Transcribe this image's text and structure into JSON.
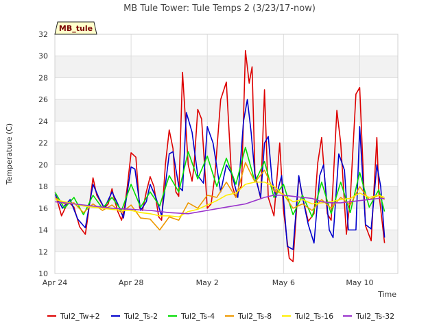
{
  "chart_data": {
    "type": "line",
    "title": "MB Tule Tower: Tule Temps 2 (3/23/17-now)",
    "badge": "MB_tule",
    "xlabel": "Time",
    "ylabel": "Temperature (C)",
    "ylim": [
      10,
      32
    ],
    "yticks": [
      10,
      12,
      14,
      16,
      18,
      20,
      22,
      24,
      26,
      28,
      30,
      32
    ],
    "xlim": [
      0,
      18
    ],
    "xticks": [
      {
        "value": 0,
        "label": "Apr 24"
      },
      {
        "value": 4,
        "label": "Apr 28"
      },
      {
        "value": 8,
        "label": "May 2"
      },
      {
        "value": 12,
        "label": "May 6"
      },
      {
        "value": 16,
        "label": "May 10"
      }
    ],
    "grid": true,
    "legend_position": "bottom",
    "series": [
      {
        "name": "Tul2_Tw+2",
        "color": "#dd0000",
        "x": [
          0.0,
          0.35,
          0.7,
          1.0,
          1.3,
          1.6,
          1.7,
          2.0,
          2.2,
          2.6,
          2.8,
          3.0,
          3.1,
          3.3,
          3.5,
          3.65,
          3.8,
          4.0,
          4.25,
          4.45,
          4.6,
          4.8,
          5.0,
          5.2,
          5.45,
          5.6,
          5.8,
          6.0,
          6.2,
          6.35,
          6.5,
          6.7,
          7.0,
          7.2,
          7.3,
          7.5,
          7.7,
          8.0,
          8.2,
          8.4,
          8.7,
          9.0,
          9.3,
          9.5,
          9.8,
          10.0,
          10.2,
          10.35,
          10.5,
          10.8,
          11.0,
          11.2,
          11.5,
          11.8,
          12.0,
          12.3,
          12.5,
          12.8,
          13.0,
          13.3,
          13.6,
          13.8,
          14.0,
          14.3,
          14.5,
          14.8,
          15.0,
          15.3,
          15.5,
          15.8,
          16.0,
          16.3,
          16.6,
          16.9,
          17.0,
          17.3
        ],
        "y": [
          17.5,
          15.3,
          16.6,
          16.1,
          14.3,
          13.6,
          14.8,
          18.8,
          17.2,
          16.0,
          16.4,
          17.8,
          17.0,
          15.7,
          14.9,
          16.0,
          18.0,
          21.1,
          20.7,
          16.0,
          15.8,
          17.5,
          18.9,
          18.0,
          15.2,
          14.9,
          20.0,
          23.2,
          21.5,
          17.5,
          17.1,
          28.5,
          20.0,
          18.5,
          19.8,
          25.1,
          24.2,
          16.0,
          16.4,
          19.0,
          26.0,
          27.6,
          18.1,
          17.0,
          18.1,
          30.5,
          27.5,
          29.0,
          19.2,
          16.9,
          26.9,
          17.0,
          15.3,
          22.0,
          15.8,
          11.4,
          11.1,
          18.9,
          17.0,
          14.8,
          15.5,
          20.2,
          22.5,
          15.5,
          14.9,
          25.0,
          22.0,
          13.6,
          16.8,
          26.5,
          27.1,
          14.4,
          13.0,
          22.5,
          17.5,
          12.8
        ]
      },
      {
        "name": "Tul2_Ts-2",
        "color": "#0000cc",
        "x": [
          0.0,
          0.4,
          0.8,
          1.2,
          1.6,
          2.0,
          2.3,
          2.6,
          3.0,
          3.3,
          3.6,
          4.0,
          4.2,
          4.5,
          4.8,
          5.0,
          5.3,
          5.6,
          6.0,
          6.2,
          6.5,
          6.7,
          6.9,
          7.2,
          7.5,
          7.8,
          8.0,
          8.3,
          8.7,
          9.0,
          9.3,
          9.6,
          9.9,
          10.1,
          10.3,
          10.5,
          10.8,
          11.0,
          11.2,
          11.4,
          11.6,
          11.9,
          12.2,
          12.5,
          12.8,
          13.0,
          13.3,
          13.6,
          13.9,
          14.1,
          14.4,
          14.6,
          14.9,
          15.2,
          15.4,
          15.8,
          16.0,
          16.3,
          16.6,
          16.9,
          17.1,
          17.3
        ],
        "y": [
          17.3,
          16.0,
          16.8,
          15.0,
          14.2,
          18.2,
          17.0,
          16.0,
          17.5,
          16.4,
          15.1,
          19.8,
          19.6,
          15.8,
          16.6,
          18.2,
          17.0,
          15.3,
          21.0,
          21.2,
          18.0,
          17.6,
          24.8,
          23.0,
          19.0,
          18.3,
          23.5,
          22.0,
          17.5,
          20.0,
          19.1,
          17.0,
          24.0,
          26.0,
          23.0,
          19.0,
          17.0,
          22.0,
          22.6,
          18.5,
          17.0,
          19.0,
          12.5,
          12.2,
          19.0,
          17.0,
          14.5,
          12.8,
          19.0,
          20.0,
          14.0,
          13.3,
          21.0,
          19.5,
          14.0,
          14.0,
          23.5,
          14.5,
          14.1,
          20.0,
          18.0,
          13.3
        ]
      },
      {
        "name": "Tul2_Ts-4",
        "color": "#00dd00",
        "x": [
          0.0,
          0.5,
          1.0,
          1.5,
          2.0,
          2.5,
          3.0,
          3.5,
          4.0,
          4.5,
          5.0,
          5.5,
          6.0,
          6.5,
          7.0,
          7.5,
          8.0,
          8.5,
          9.0,
          9.5,
          10.0,
          10.5,
          11.0,
          11.5,
          12.0,
          12.5,
          13.0,
          13.5,
          14.0,
          14.5,
          15.0,
          15.5,
          16.0,
          16.5,
          17.0,
          17.3
        ],
        "y": [
          17.5,
          16.0,
          17.0,
          15.4,
          17.2,
          16.0,
          17.0,
          15.8,
          18.2,
          16.1,
          17.5,
          16.2,
          19.0,
          17.5,
          21.2,
          18.7,
          20.8,
          18.0,
          20.6,
          18.2,
          21.6,
          18.4,
          20.3,
          17.0,
          18.2,
          15.4,
          17.2,
          15.2,
          18.4,
          15.5,
          18.4,
          15.6,
          19.3,
          16.1,
          17.7,
          15.7
        ]
      },
      {
        "name": "Tul2_Ts-8",
        "color": "#ee9900",
        "x": [
          0.0,
          0.5,
          1.0,
          1.5,
          2.0,
          2.5,
          3.0,
          3.5,
          4.0,
          4.5,
          5.0,
          5.5,
          6.0,
          6.5,
          7.0,
          7.5,
          8.0,
          8.5,
          9.0,
          9.5,
          10.0,
          10.5,
          11.0,
          11.5,
          12.0,
          12.5,
          13.0,
          13.5,
          14.0,
          14.5,
          15.0,
          15.5,
          16.0,
          16.5,
          17.0,
          17.3
        ],
        "y": [
          17.0,
          16.4,
          16.5,
          15.6,
          16.4,
          15.8,
          16.3,
          15.6,
          16.3,
          15.1,
          15.0,
          14.0,
          15.2,
          14.9,
          16.5,
          16.0,
          17.2,
          17.0,
          18.4,
          17.0,
          20.2,
          18.4,
          19.5,
          17.6,
          17.3,
          16.0,
          16.4,
          15.8,
          16.8,
          16.0,
          17.0,
          16.3,
          18.0,
          16.8,
          17.2,
          16.8
        ]
      },
      {
        "name": "Tul2_Ts-16",
        "color": "#ffee00",
        "x": [
          0.0,
          0.5,
          1.0,
          1.5,
          2.0,
          2.5,
          3.0,
          3.5,
          4.0,
          4.5,
          5.0,
          5.5,
          6.0,
          6.5,
          7.0,
          7.5,
          8.0,
          8.5,
          9.0,
          9.5,
          10.0,
          10.5,
          11.0,
          11.5,
          12.0,
          12.5,
          13.0,
          13.5,
          14.0,
          14.5,
          15.0,
          15.5,
          16.0,
          16.5,
          17.0,
          17.3
        ],
        "y": [
          16.8,
          16.6,
          16.4,
          16.2,
          16.1,
          16.0,
          15.9,
          15.8,
          15.8,
          15.6,
          15.5,
          15.3,
          15.3,
          15.2,
          15.7,
          15.9,
          16.3,
          16.7,
          17.2,
          17.4,
          18.2,
          18.4,
          18.4,
          18.0,
          17.2,
          16.6,
          16.8,
          16.4,
          16.5,
          16.6,
          16.8,
          16.9,
          17.4,
          17.0,
          17.2,
          17.0
        ]
      },
      {
        "name": "Tul2_Ts-32",
        "color": "#9933cc",
        "x": [
          0.0,
          1.0,
          2.0,
          3.0,
          4.0,
          5.0,
          6.0,
          7.0,
          8.0,
          9.0,
          10.0,
          11.0,
          11.5,
          12.0,
          12.5,
          13.0,
          13.5,
          14.0,
          14.5,
          15.0,
          15.5,
          16.0,
          16.5,
          17.0,
          17.3
        ],
        "y": [
          16.6,
          16.4,
          16.2,
          16.0,
          15.9,
          15.8,
          15.6,
          15.5,
          15.8,
          16.1,
          16.4,
          17.0,
          17.2,
          17.2,
          17.1,
          17.0,
          16.9,
          16.6,
          16.5,
          16.5,
          16.6,
          16.7,
          16.8,
          16.9,
          16.9
        ]
      }
    ]
  }
}
